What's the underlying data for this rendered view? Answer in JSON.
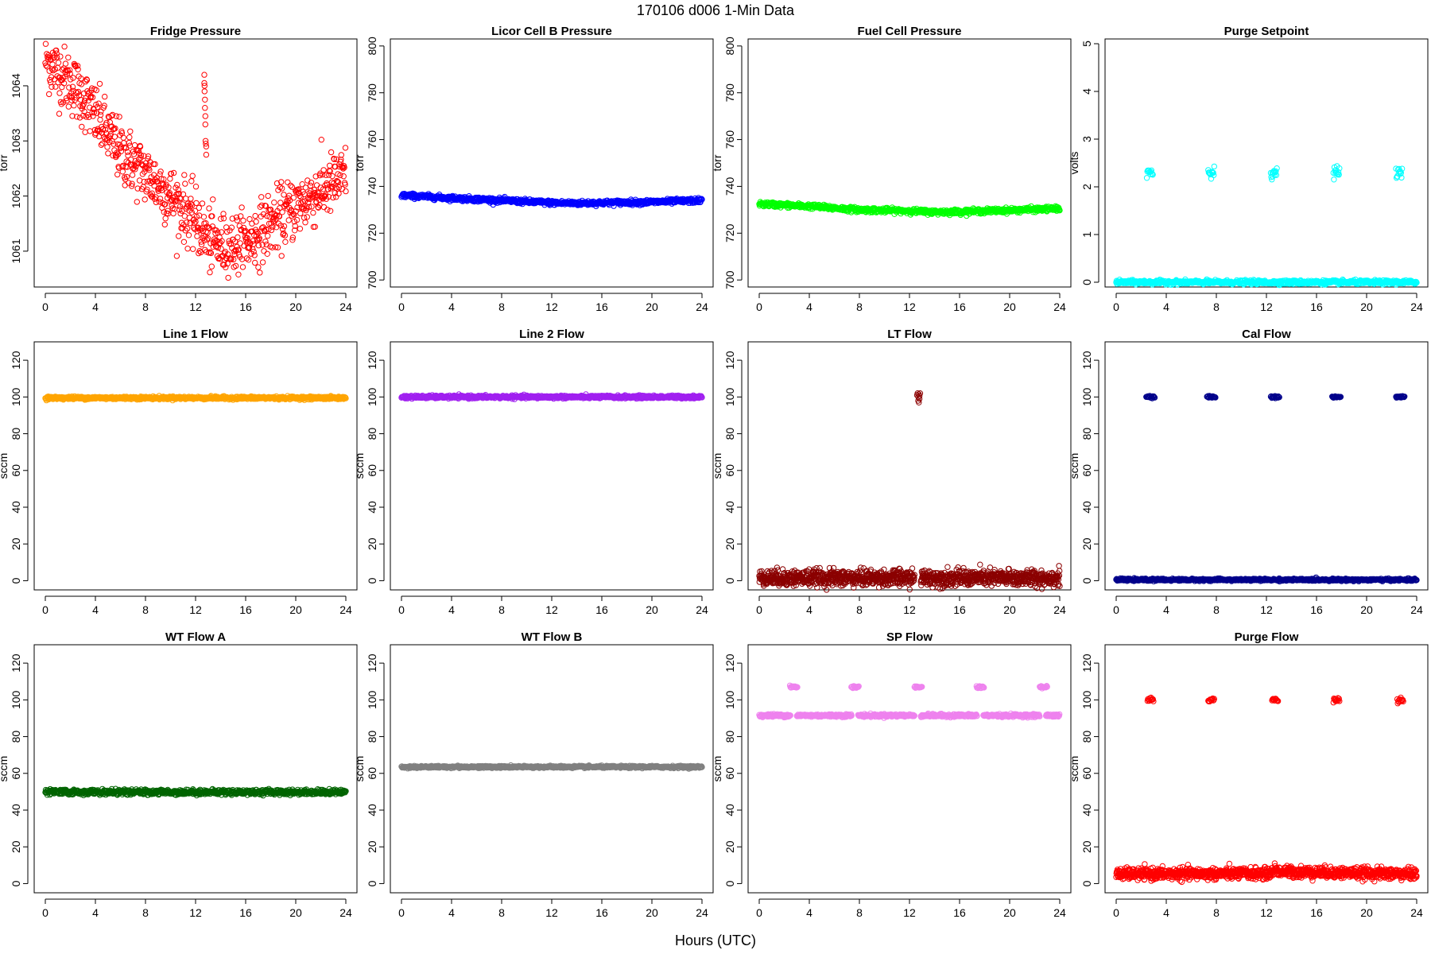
{
  "figure": {
    "title": "170106   d006   1-Min Data",
    "xlabel": "Hours (UTC)"
  },
  "chart_data": [
    {
      "type": "scatter",
      "title": "Fridge Pressure",
      "ylabel": "torr",
      "color": "#ff0000",
      "marker": "open-circle",
      "xlim": [
        0,
        24
      ],
      "xticks": [
        0,
        4,
        8,
        12,
        16,
        20,
        24
      ],
      "ylim": [
        1060.35,
        1064.85
      ],
      "yticks": [
        1061,
        1062,
        1063,
        1064
      ],
      "series": [
        {
          "segments": [
            {
              "kind": "noisy-curve",
              "x": [
                0,
                1,
                2,
                3,
                4,
                6,
                8,
                10,
                12,
                13,
                14,
                16,
                18,
                20,
                22,
                24
              ],
              "y": [
                1064.5,
                1064.25,
                1064.05,
                1063.8,
                1063.45,
                1062.8,
                1062.4,
                1062.0,
                1061.55,
                1061.2,
                1061.1,
                1061.15,
                1061.5,
                1061.8,
                1062.1,
                1062.35
              ],
              "noise": 0.28,
              "step": 0.03
            },
            {
              "kind": "points",
              "x": [
                12.7,
                12.7,
                12.72,
                12.72,
                12.75,
                12.75,
                12.78,
                12.78,
                12.8,
                12.82,
                12.85,
                12.85
              ],
              "y": [
                1064.2,
                1064.05,
                1064.0,
                1063.9,
                1063.75,
                1063.6,
                1063.45,
                1063.3,
                1063.0,
                1062.95,
                1062.9,
                1062.75
              ]
            }
          ]
        }
      ]
    },
    {
      "type": "scatter",
      "title": "Licor Cell B Pressure",
      "ylabel": "torr",
      "color": "#0000ff",
      "marker": "open-circle",
      "xlim": [
        0,
        24
      ],
      "xticks": [
        0,
        4,
        8,
        12,
        16,
        20,
        24
      ],
      "ylim": [
        697,
        803
      ],
      "yticks": [
        700,
        720,
        740,
        760,
        780,
        800
      ],
      "series": [
        {
          "segments": [
            {
              "kind": "noisy-curve",
              "x": [
                0,
                4,
                8,
                12,
                14,
                16,
                20,
                24
              ],
              "y": [
                736.2,
                735.0,
                734.0,
                733.0,
                732.8,
                733.0,
                733.3,
                734.0
              ],
              "noise": 0.5,
              "step": 0.03
            }
          ]
        }
      ]
    },
    {
      "type": "scatter",
      "title": "Fuel Cell Pressure",
      "ylabel": "torr",
      "color": "#00ff00",
      "marker": "open-circle",
      "xlim": [
        0,
        24
      ],
      "xticks": [
        0,
        4,
        8,
        12,
        16,
        20,
        24
      ],
      "ylim": [
        697,
        803
      ],
      "yticks": [
        700,
        720,
        740,
        760,
        780,
        800
      ],
      "series": [
        {
          "segments": [
            {
              "kind": "noisy-curve",
              "x": [
                0,
                4,
                8,
                12,
                14,
                16,
                20,
                24
              ],
              "y": [
                732.5,
                731.5,
                730.0,
                729.5,
                729.0,
                729.2,
                729.8,
                730.5
              ],
              "noise": 0.5,
              "step": 0.03
            }
          ]
        }
      ]
    },
    {
      "type": "scatter",
      "title": "Purge Setpoint",
      "ylabel": "volts",
      "color": "#00ffff",
      "marker": "open-circle",
      "xlim": [
        0,
        24
      ],
      "xticks": [
        0,
        4,
        8,
        12,
        16,
        20,
        24
      ],
      "ylim": [
        -0.1,
        5.1
      ],
      "yticks": [
        0,
        1,
        2,
        3,
        4,
        5
      ],
      "series": [
        {
          "segments": [
            {
              "kind": "noisy-curve",
              "x": [
                0,
                24
              ],
              "y": [
                0,
                0
              ],
              "noise": 0.02,
              "step": 0.03
            },
            {
              "kind": "clusters",
              "centers": [
                2.7,
                7.6,
                12.6,
                17.6,
                22.6
              ],
              "half_width": 0.25,
              "y": 2.3,
              "noise": 0.06,
              "step": 0.04
            }
          ]
        }
      ]
    },
    {
      "type": "scatter",
      "title": "Line 1 Flow",
      "ylabel": "sccm",
      "color": "#ffa500",
      "marker": "open-circle",
      "xlim": [
        0,
        24
      ],
      "xticks": [
        0,
        4,
        8,
        12,
        16,
        20,
        24
      ],
      "ylim": [
        -5,
        130
      ],
      "yticks": [
        0,
        20,
        40,
        60,
        80,
        100,
        120
      ],
      "series": [
        {
          "segments": [
            {
              "kind": "noisy-curve",
              "x": [
                0,
                24
              ],
              "y": [
                99.5,
                99.5
              ],
              "noise": 0.4,
              "step": 0.03
            }
          ]
        }
      ]
    },
    {
      "type": "scatter",
      "title": "Line 2 Flow",
      "ylabel": "sccm",
      "color": "#a020f0",
      "marker": "open-circle",
      "xlim": [
        0,
        24
      ],
      "xticks": [
        0,
        4,
        8,
        12,
        16,
        20,
        24
      ],
      "ylim": [
        -5,
        130
      ],
      "yticks": [
        0,
        20,
        40,
        60,
        80,
        100,
        120
      ],
      "series": [
        {
          "segments": [
            {
              "kind": "noisy-curve",
              "x": [
                0,
                24
              ],
              "y": [
                100,
                100
              ],
              "noise": 0.4,
              "step": 0.03
            }
          ]
        }
      ]
    },
    {
      "type": "scatter",
      "title": "LT Flow",
      "ylabel": "sccm",
      "color": "#8b0000",
      "marker": "open-circle",
      "xlim": [
        0,
        24
      ],
      "xticks": [
        0,
        4,
        8,
        12,
        16,
        20,
        24
      ],
      "ylim": [
        -5,
        130
      ],
      "yticks": [
        0,
        20,
        40,
        60,
        80,
        100,
        120
      ],
      "series": [
        {
          "segments": [
            {
              "kind": "noisy-curve",
              "x": [
                0,
                12.4
              ],
              "y": [
                1.5,
                1.5
              ],
              "noise": 2.2,
              "step": 0.02
            },
            {
              "kind": "noisy-curve",
              "x": [
                12.9,
                24
              ],
              "y": [
                1.5,
                1.5
              ],
              "noise": 2.2,
              "step": 0.02
            },
            {
              "kind": "points",
              "x": [
                12.6,
                12.65,
                12.7,
                12.75,
                12.8,
                12.85,
                12.7,
                12.75,
                12.8
              ],
              "y": [
                101,
                102,
                100,
                101.5,
                100.5,
                102,
                98,
                97,
                99
              ]
            }
          ]
        }
      ]
    },
    {
      "type": "scatter",
      "title": "Cal Flow",
      "ylabel": "sccm",
      "color": "#00008b",
      "marker": "open-circle",
      "xlim": [
        0,
        24
      ],
      "xticks": [
        0,
        4,
        8,
        12,
        16,
        20,
        24
      ],
      "ylim": [
        -5,
        130
      ],
      "yticks": [
        0,
        20,
        40,
        60,
        80,
        100,
        120
      ],
      "series": [
        {
          "segments": [
            {
              "kind": "noisy-curve",
              "x": [
                0,
                24
              ],
              "y": [
                0.5,
                0.5
              ],
              "noise": 0.3,
              "step": 0.03
            },
            {
              "kind": "clusters",
              "centers": [
                2.75,
                7.6,
                12.7,
                17.6,
                22.7
              ],
              "half_width": 0.35,
              "y": 100,
              "noise": 0.3,
              "step": 0.04
            }
          ]
        }
      ]
    },
    {
      "type": "scatter",
      "title": "WT Flow A",
      "ylabel": "sccm",
      "color": "#006400",
      "marker": "open-circle",
      "xlim": [
        0,
        24
      ],
      "xticks": [
        0,
        4,
        8,
        12,
        16,
        20,
        24
      ],
      "ylim": [
        -5,
        130
      ],
      "yticks": [
        0,
        20,
        40,
        60,
        80,
        100,
        120
      ],
      "series": [
        {
          "segments": [
            {
              "kind": "noisy-curve",
              "x": [
                0,
                24
              ],
              "y": [
                49.8,
                49.8
              ],
              "noise": 0.7,
              "step": 0.03
            }
          ]
        }
      ]
    },
    {
      "type": "scatter",
      "title": "WT Flow B",
      "ylabel": "sccm",
      "color": "#808080",
      "marker": "open-circle",
      "xlim": [
        0,
        24
      ],
      "xticks": [
        0,
        4,
        8,
        12,
        16,
        20,
        24
      ],
      "ylim": [
        -5,
        130
      ],
      "yticks": [
        0,
        20,
        40,
        60,
        80,
        100,
        120
      ],
      "series": [
        {
          "segments": [
            {
              "kind": "noisy-curve",
              "x": [
                0,
                24
              ],
              "y": [
                63.5,
                63.5
              ],
              "noise": 0.3,
              "step": 0.03
            }
          ]
        }
      ]
    },
    {
      "type": "scatter",
      "title": "SP Flow",
      "ylabel": "sccm",
      "color": "#ee82ee",
      "marker": "open-circle",
      "xlim": [
        0,
        24
      ],
      "xticks": [
        0,
        4,
        8,
        12,
        16,
        20,
        24
      ],
      "ylim": [
        -5,
        130
      ],
      "yticks": [
        0,
        20,
        40,
        60,
        80,
        100,
        120
      ],
      "series": [
        {
          "segments": [
            {
              "kind": "noisy-curve",
              "x": [
                0,
                2.5
              ],
              "y": [
                91.5,
                91.5
              ],
              "noise": 0.4,
              "step": 0.03
            },
            {
              "kind": "noisy-curve",
              "x": [
                3.0,
                7.4
              ],
              "y": [
                91.5,
                91.5
              ],
              "noise": 0.4,
              "step": 0.03
            },
            {
              "kind": "noisy-curve",
              "x": [
                7.9,
                12.4
              ],
              "y": [
                91.5,
                91.5
              ],
              "noise": 0.4,
              "step": 0.03
            },
            {
              "kind": "noisy-curve",
              "x": [
                12.9,
                17.4
              ],
              "y": [
                91.5,
                91.5
              ],
              "noise": 0.4,
              "step": 0.03
            },
            {
              "kind": "noisy-curve",
              "x": [
                17.9,
                22.4
              ],
              "y": [
                91.5,
                91.5
              ],
              "noise": 0.4,
              "step": 0.03
            },
            {
              "kind": "noisy-curve",
              "x": [
                22.9,
                24
              ],
              "y": [
                91.5,
                91.5
              ],
              "noise": 0.4,
              "step": 0.03
            },
            {
              "kind": "clusters",
              "centers": [
                2.75,
                7.65,
                12.7,
                17.65,
                22.7
              ],
              "half_width": 0.3,
              "y": 107,
              "noise": 0.3,
              "step": 0.04
            }
          ]
        }
      ]
    },
    {
      "type": "scatter",
      "title": "Purge Flow",
      "ylabel": "sccm",
      "color": "#ff0000",
      "marker": "open-circle",
      "xlim": [
        0,
        24
      ],
      "xticks": [
        0,
        4,
        8,
        12,
        16,
        20,
        24
      ],
      "ylim": [
        -5,
        130
      ],
      "yticks": [
        0,
        20,
        40,
        60,
        80,
        100,
        120
      ],
      "series": [
        {
          "segments": [
            {
              "kind": "noisy-curve",
              "x": [
                0,
                12.3,
                12.7,
                13.0,
                24
              ],
              "y": [
                5.2,
                5.5,
                8.0,
                6.5,
                5.2
              ],
              "noise": 1.5,
              "step": 0.02
            },
            {
              "kind": "clusters",
              "centers": [
                2.75,
                7.6,
                12.7,
                17.6,
                22.7
              ],
              "half_width": 0.25,
              "y": 100,
              "noise": 0.6,
              "step": 0.04
            }
          ]
        }
      ]
    }
  ]
}
